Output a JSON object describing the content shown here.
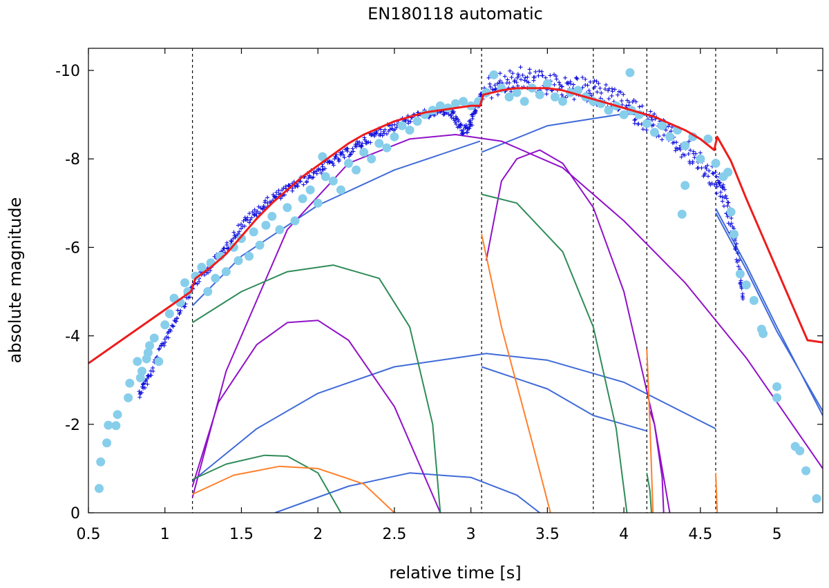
{
  "chart_data": {
    "type": "line",
    "title": "EN180118 automatic",
    "xlabel": "relative time [s]",
    "ylabel": "absolute magnitude",
    "xlim": [
      0.5,
      5.3
    ],
    "ylim": [
      0,
      -10.5
    ],
    "x_ticks": [
      0.5,
      1,
      1.5,
      2,
      2.5,
      3,
      3.5,
      4,
      4.5,
      5
    ],
    "x_tick_labels": [
      "0.5",
      "1",
      "1.5",
      "2",
      "2.5",
      "3",
      "3.5",
      "4",
      "4.5",
      "5"
    ],
    "y_ticks": [
      0,
      -2,
      -4,
      -6,
      -8,
      -10
    ],
    "y_tick_labels": [
      "0",
      "-2",
      "-4",
      "-6",
      "-8",
      "-10"
    ],
    "grid": false,
    "legend": "none",
    "fragmentation_times": [
      1.18,
      3.07,
      3.8,
      4.15,
      4.6
    ],
    "colors": {
      "model_total": "#ee1c1c",
      "main_body": "#3f6ad8",
      "fragment_purple": "#9010c8",
      "fragment_green": "#2e8b57",
      "fragment_orange": "#ff7f2a",
      "observed_circles": "#87ceeb",
      "observed_crosses": "#1010dd",
      "marker_lines": "#000000"
    },
    "observed_circles": [
      [
        0.57,
        -0.55
      ],
      [
        0.58,
        -1.15
      ],
      [
        0.62,
        -1.58
      ],
      [
        0.63,
        -1.98
      ],
      [
        0.68,
        -1.97
      ],
      [
        0.69,
        -2.22
      ],
      [
        0.76,
        -2.6
      ],
      [
        0.77,
        -2.93
      ],
      [
        0.82,
        -3.42
      ],
      [
        0.84,
        -3.05
      ],
      [
        0.85,
        -3.2
      ],
      [
        0.88,
        -3.48
      ],
      [
        0.89,
        -3.62
      ],
      [
        0.9,
        -3.78
      ],
      [
        0.93,
        -3.95
      ],
      [
        0.96,
        -3.42
      ],
      [
        1.0,
        -4.25
      ],
      [
        1.03,
        -4.5
      ],
      [
        1.06,
        -4.85
      ],
      [
        1.1,
        -4.75
      ],
      [
        1.13,
        -5.2
      ],
      [
        1.15,
        -5.0
      ],
      [
        1.2,
        -5.35
      ],
      [
        1.24,
        -5.55
      ],
      [
        1.28,
        -5.0
      ],
      [
        1.3,
        -5.65
      ],
      [
        1.33,
        -5.3
      ],
      [
        1.36,
        -5.8
      ],
      [
        1.4,
        -5.45
      ],
      [
        1.45,
        -6.0
      ],
      [
        1.48,
        -5.7
      ],
      [
        1.5,
        -6.2
      ],
      [
        1.55,
        -5.8
      ],
      [
        1.58,
        -6.35
      ],
      [
        1.62,
        -6.05
      ],
      [
        1.66,
        -6.5
      ],
      [
        1.7,
        -6.7
      ],
      [
        1.75,
        -6.4
      ],
      [
        1.8,
        -6.9
      ],
      [
        1.85,
        -6.6
      ],
      [
        1.9,
        -7.1
      ],
      [
        1.95,
        -7.3
      ],
      [
        2.0,
        -7.0
      ],
      [
        2.03,
        -8.05
      ],
      [
        2.05,
        -7.6
      ],
      [
        2.1,
        -7.5
      ],
      [
        2.15,
        -7.3
      ],
      [
        2.2,
        -7.9
      ],
      [
        2.25,
        -7.75
      ],
      [
        2.3,
        -8.15
      ],
      [
        2.35,
        -8.0
      ],
      [
        2.4,
        -8.35
      ],
      [
        2.45,
        -8.25
      ],
      [
        2.5,
        -8.5
      ],
      [
        2.55,
        -8.75
      ],
      [
        2.6,
        -8.65
      ],
      [
        2.65,
        -8.85
      ],
      [
        2.7,
        -9.0
      ],
      [
        2.75,
        -9.1
      ],
      [
        2.8,
        -9.2
      ],
      [
        2.85,
        -9.15
      ],
      [
        2.9,
        -9.25
      ],
      [
        2.95,
        -9.3
      ],
      [
        3.0,
        -9.2
      ],
      [
        3.05,
        -9.3
      ],
      [
        3.1,
        -9.5
      ],
      [
        3.15,
        -9.9
      ],
      [
        3.2,
        -9.6
      ],
      [
        3.25,
        -9.4
      ],
      [
        3.3,
        -9.5
      ],
      [
        3.35,
        -9.3
      ],
      [
        3.4,
        -9.6
      ],
      [
        3.45,
        -9.45
      ],
      [
        3.5,
        -9.7
      ],
      [
        3.55,
        -9.4
      ],
      [
        3.6,
        -9.3
      ],
      [
        3.65,
        -9.5
      ],
      [
        3.7,
        -9.55
      ],
      [
        3.75,
        -9.4
      ],
      [
        3.8,
        -9.3
      ],
      [
        3.85,
        -9.25
      ],
      [
        3.9,
        -9.1
      ],
      [
        3.95,
        -9.2
      ],
      [
        4.0,
        -9.0
      ],
      [
        4.05,
        -9.1
      ],
      [
        4.04,
        -9.95
      ],
      [
        4.1,
        -9.0
      ],
      [
        4.15,
        -8.8
      ],
      [
        4.2,
        -8.6
      ],
      [
        4.25,
        -8.75
      ],
      [
        4.3,
        -8.5
      ],
      [
        4.35,
        -8.65
      ],
      [
        4.4,
        -8.3
      ],
      [
        4.45,
        -8.5
      ],
      [
        4.5,
        -8.0
      ],
      [
        4.55,
        -8.45
      ],
      [
        4.6,
        -7.9
      ],
      [
        4.65,
        -7.6
      ],
      [
        4.68,
        -7.7
      ],
      [
        4.7,
        -6.8
      ],
      [
        4.72,
        -6.3
      ],
      [
        4.76,
        -5.4
      ],
      [
        4.8,
        -5.15
      ],
      [
        4.85,
        -4.8
      ],
      [
        4.9,
        -4.15
      ],
      [
        4.91,
        -4.05
      ],
      [
        5.0,
        -2.85
      ],
      [
        5.0,
        -2.6
      ],
      [
        5.12,
        -1.5
      ],
      [
        5.15,
        -1.4
      ],
      [
        5.19,
        -0.95
      ],
      [
        5.26,
        -0.32
      ],
      [
        4.38,
        -6.75
      ],
      [
        4.4,
        -7.4
      ]
    ],
    "observed_crosses_trend": [
      [
        0.83,
        -2.7
      ],
      [
        0.9,
        -3.1
      ],
      [
        1.0,
        -3.9
      ],
      [
        1.1,
        -4.6
      ],
      [
        1.2,
        -5.2
      ],
      [
        1.3,
        -5.6
      ],
      [
        1.4,
        -6.0
      ],
      [
        1.5,
        -6.5
      ],
      [
        1.6,
        -6.8
      ],
      [
        1.7,
        -7.1
      ],
      [
        1.8,
        -7.3
      ],
      [
        1.9,
        -7.5
      ],
      [
        2.0,
        -7.75
      ],
      [
        2.1,
        -7.95
      ],
      [
        2.2,
        -8.15
      ],
      [
        2.3,
        -8.4
      ],
      [
        2.4,
        -8.6
      ],
      [
        2.5,
        -8.75
      ],
      [
        2.6,
        -8.9
      ],
      [
        2.7,
        -9.0
      ],
      [
        2.8,
        -9.1
      ],
      [
        2.85,
        -9.1
      ],
      [
        2.9,
        -8.9
      ],
      [
        2.95,
        -8.6
      ],
      [
        3.0,
        -8.8
      ],
      [
        3.05,
        -9.3
      ],
      [
        3.1,
        -9.6
      ],
      [
        3.2,
        -9.7
      ],
      [
        3.3,
        -9.8
      ],
      [
        3.4,
        -9.8
      ],
      [
        3.5,
        -9.7
      ],
      [
        3.6,
        -9.6
      ],
      [
        3.7,
        -9.6
      ],
      [
        3.8,
        -9.5
      ],
      [
        3.9,
        -9.4
      ],
      [
        4.0,
        -9.2
      ],
      [
        4.1,
        -9.0
      ],
      [
        4.2,
        -8.8
      ],
      [
        4.3,
        -8.5
      ],
      [
        4.4,
        -8.2
      ],
      [
        4.5,
        -7.9
      ],
      [
        4.6,
        -7.5
      ],
      [
        4.65,
        -7.2
      ],
      [
        4.7,
        -6.6
      ],
      [
        4.75,
        -5.6
      ],
      [
        4.78,
        -4.8
      ]
    ],
    "series": [
      {
        "role": "model_total",
        "x": [
          0.5,
          1.17,
          1.19,
          1.2,
          1.3,
          1.4,
          1.5,
          1.6,
          1.7,
          1.8,
          1.9,
          2.0,
          2.1,
          2.2,
          2.3,
          2.4,
          2.5,
          2.6,
          2.7,
          2.8,
          2.9,
          3.0,
          3.06,
          3.08,
          3.2,
          3.3,
          3.4,
          3.5,
          3.6,
          3.7,
          3.8,
          3.9,
          4.0,
          4.1,
          4.15,
          4.2,
          4.3,
          4.4,
          4.5,
          4.59,
          4.61,
          4.7,
          4.8,
          4.9,
          5.0,
          5.1,
          5.2,
          5.3
        ],
        "y": [
          -3.38,
          -5.0,
          -5.2,
          -5.3,
          -5.55,
          -5.85,
          -6.25,
          -6.65,
          -7.0,
          -7.3,
          -7.6,
          -7.85,
          -8.1,
          -8.35,
          -8.55,
          -8.7,
          -8.85,
          -8.95,
          -9.05,
          -9.1,
          -9.15,
          -9.2,
          -9.2,
          -9.45,
          -9.55,
          -9.6,
          -9.6,
          -9.6,
          -9.55,
          -9.45,
          -9.35,
          -9.25,
          -9.15,
          -9.05,
          -9.0,
          -8.95,
          -8.8,
          -8.65,
          -8.45,
          -8.2,
          -8.5,
          -7.95,
          -7.1,
          -6.3,
          -5.5,
          -4.7,
          -3.9,
          -3.85
        ]
      },
      {
        "role": "main_body",
        "x": [
          1.18,
          1.5,
          2.0,
          2.5,
          3.06
        ],
        "y": [
          -4.68,
          -5.8,
          -6.95,
          -7.75,
          -8.4
        ]
      },
      {
        "role": "main_body",
        "x": [
          3.07,
          3.5,
          4.0,
          4.2
        ],
        "y": [
          -8.15,
          -8.75,
          -9.02,
          -8.98
        ]
      },
      {
        "role": "main_body",
        "x": [
          4.6,
          4.8,
          5.0,
          5.3
        ],
        "y": [
          -6.88,
          -5.6,
          -4.2,
          -2.2
        ]
      },
      {
        "role": "main_body",
        "x": [
          4.6,
          4.8,
          5.0,
          5.3
        ],
        "y": [
          -6.78,
          -5.5,
          -4.1,
          -2.3
        ]
      },
      {
        "role": "main_body",
        "x": [
          1.18,
          1.6,
          2.0,
          2.5,
          3.1,
          3.5,
          4.0,
          4.6
        ],
        "y": [
          -0.72,
          -1.9,
          -2.7,
          -3.3,
          -3.6,
          -3.45,
          -2.95,
          -1.9
        ]
      },
      {
        "role": "main_body",
        "x": [
          3.07,
          3.5,
          3.8,
          4.15
        ],
        "y": [
          -3.3,
          -2.8,
          -2.2,
          -1.85
        ]
      },
      {
        "role": "main_body",
        "x": [
          1.72,
          2.2,
          2.6,
          3.0,
          3.3,
          3.45
        ],
        "y": [
          0,
          -0.6,
          -0.9,
          -0.8,
          -0.4,
          0
        ]
      },
      {
        "role": "fragment_purple",
        "x": [
          1.18,
          1.4,
          1.8,
          2.2,
          2.6,
          2.9,
          3.2,
          3.6,
          4.0,
          4.4,
          4.8,
          5.3
        ],
        "y": [
          -0.35,
          -3.2,
          -6.4,
          -7.9,
          -8.45,
          -8.55,
          -8.4,
          -7.8,
          -6.6,
          -5.2,
          -3.5,
          -1.0
        ]
      },
      {
        "role": "fragment_purple",
        "x": [
          1.18,
          1.35,
          1.6,
          1.8,
          2.0,
          2.2,
          2.5,
          2.8
        ],
        "y": [
          -0.6,
          -2.5,
          -3.8,
          -4.3,
          -4.35,
          -3.9,
          -2.4,
          0
        ]
      },
      {
        "role": "fragment_purple",
        "x": [
          3.1,
          3.2,
          3.3,
          3.45,
          3.6,
          3.8,
          4.0,
          4.2,
          4.3
        ],
        "y": [
          -5.7,
          -7.5,
          -8.0,
          -8.2,
          -7.9,
          -6.9,
          -5.0,
          -2.0,
          0
        ]
      },
      {
        "role": "fragment_purple",
        "x": [
          4.17,
          4.2,
          4.25,
          4.26
        ],
        "y": [
          -2.3,
          -2.0,
          -0.8,
          0
        ]
      },
      {
        "role": "fragment_green",
        "x": [
          1.18,
          1.5,
          1.8,
          2.1,
          2.4,
          2.6,
          2.75,
          2.8
        ],
        "y": [
          -4.3,
          -5.0,
          -5.45,
          -5.6,
          -5.3,
          -4.2,
          -2.0,
          0
        ]
      },
      {
        "role": "fragment_green",
        "x": [
          1.18,
          1.4,
          1.65,
          1.8,
          2.0,
          2.15
        ],
        "y": [
          -0.75,
          -1.1,
          -1.3,
          -1.28,
          -0.9,
          0
        ]
      },
      {
        "role": "fragment_green",
        "x": [
          3.07,
          3.3,
          3.6,
          3.8,
          3.95,
          4.02
        ],
        "y": [
          -7.2,
          -7.0,
          -5.9,
          -4.2,
          -1.9,
          0
        ]
      },
      {
        "role": "fragment_green",
        "x": [
          4.15,
          4.17,
          4.18
        ],
        "y": [
          -0.9,
          -0.5,
          0
        ]
      },
      {
        "role": "fragment_orange",
        "x": [
          1.18,
          1.45,
          1.75,
          2.0,
          2.3,
          2.5
        ],
        "y": [
          -0.42,
          -0.85,
          -1.05,
          -1.0,
          -0.65,
          0
        ]
      },
      {
        "role": "fragment_orange",
        "x": [
          3.07,
          3.2,
          3.4,
          3.52
        ],
        "y": [
          -6.3,
          -4.2,
          -1.6,
          0
        ]
      },
      {
        "role": "fragment_orange",
        "x": [
          4.15,
          4.17,
          4.19
        ],
        "y": [
          -3.7,
          -2.0,
          0
        ]
      },
      {
        "role": "fragment_orange",
        "x": [
          4.6,
          4.61
        ],
        "y": [
          -0.9,
          0
        ]
      }
    ]
  }
}
